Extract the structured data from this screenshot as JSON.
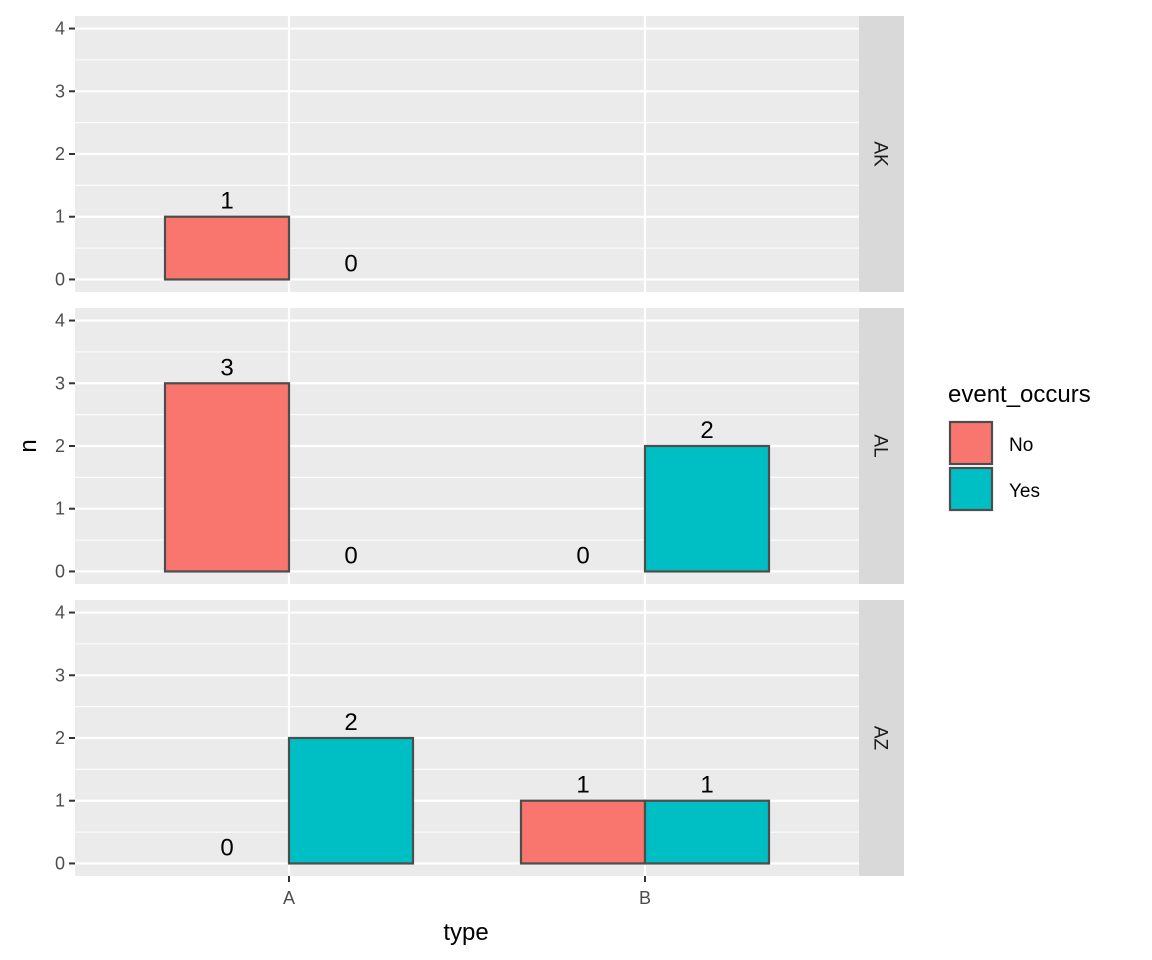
{
  "chart_data": {
    "type": "bar",
    "xlabel": "type",
    "ylabel": "n",
    "categories": [
      "A",
      "B"
    ],
    "ylim": [
      0,
      4
    ],
    "yticks": [
      "0",
      "1",
      "2",
      "3",
      "4"
    ],
    "legend": {
      "title": "event_occurs",
      "position": "right",
      "entries": [
        {
          "label": "No",
          "color": "#F8766D"
        },
        {
          "label": "Yes",
          "color": "#00BFC4"
        }
      ]
    },
    "panels": [
      {
        "facet": "AK",
        "bars": [
          {
            "category": "A",
            "group": "No",
            "value": 1
          },
          {
            "category": "A",
            "group": "Yes",
            "value": 0
          }
        ]
      },
      {
        "facet": "AL",
        "bars": [
          {
            "category": "A",
            "group": "No",
            "value": 3
          },
          {
            "category": "A",
            "group": "Yes",
            "value": 0
          },
          {
            "category": "B",
            "group": "No",
            "value": 0
          },
          {
            "category": "B",
            "group": "Yes",
            "value": 2
          }
        ]
      },
      {
        "facet": "AZ",
        "bars": [
          {
            "category": "A",
            "group": "No",
            "value": 0
          },
          {
            "category": "A",
            "group": "Yes",
            "value": 2
          },
          {
            "category": "B",
            "group": "No",
            "value": 1
          },
          {
            "category": "B",
            "group": "Yes",
            "value": 1
          }
        ]
      }
    ],
    "colors": {
      "panel_background": "#EBEBEB",
      "strip_background": "#D9D9D9",
      "bar_outline": "#4D4D4D",
      "grid": "#FFFFFF"
    }
  }
}
